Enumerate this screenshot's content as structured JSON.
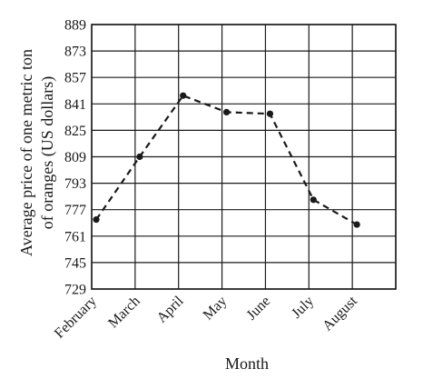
{
  "chart_data": {
    "type": "line",
    "x_categories": [
      "February",
      "March",
      "April",
      "May",
      "June",
      "July",
      "August"
    ],
    "series": [
      {
        "values": [
          771,
          809,
          846,
          836,
          835,
          783,
          768
        ]
      }
    ],
    "y_ticks": [
      729,
      745,
      761,
      777,
      793,
      809,
      825,
      841,
      857,
      873,
      889
    ],
    "ylim": [
      729,
      889
    ],
    "xlabel": "Month",
    "ylabel_line1": "Average price of one metric ton",
    "ylabel_line2": "of oranges (US dollars)",
    "grid": true,
    "line_style": "dashed",
    "marker": "filled-circle",
    "color": "#1a1a1a"
  }
}
